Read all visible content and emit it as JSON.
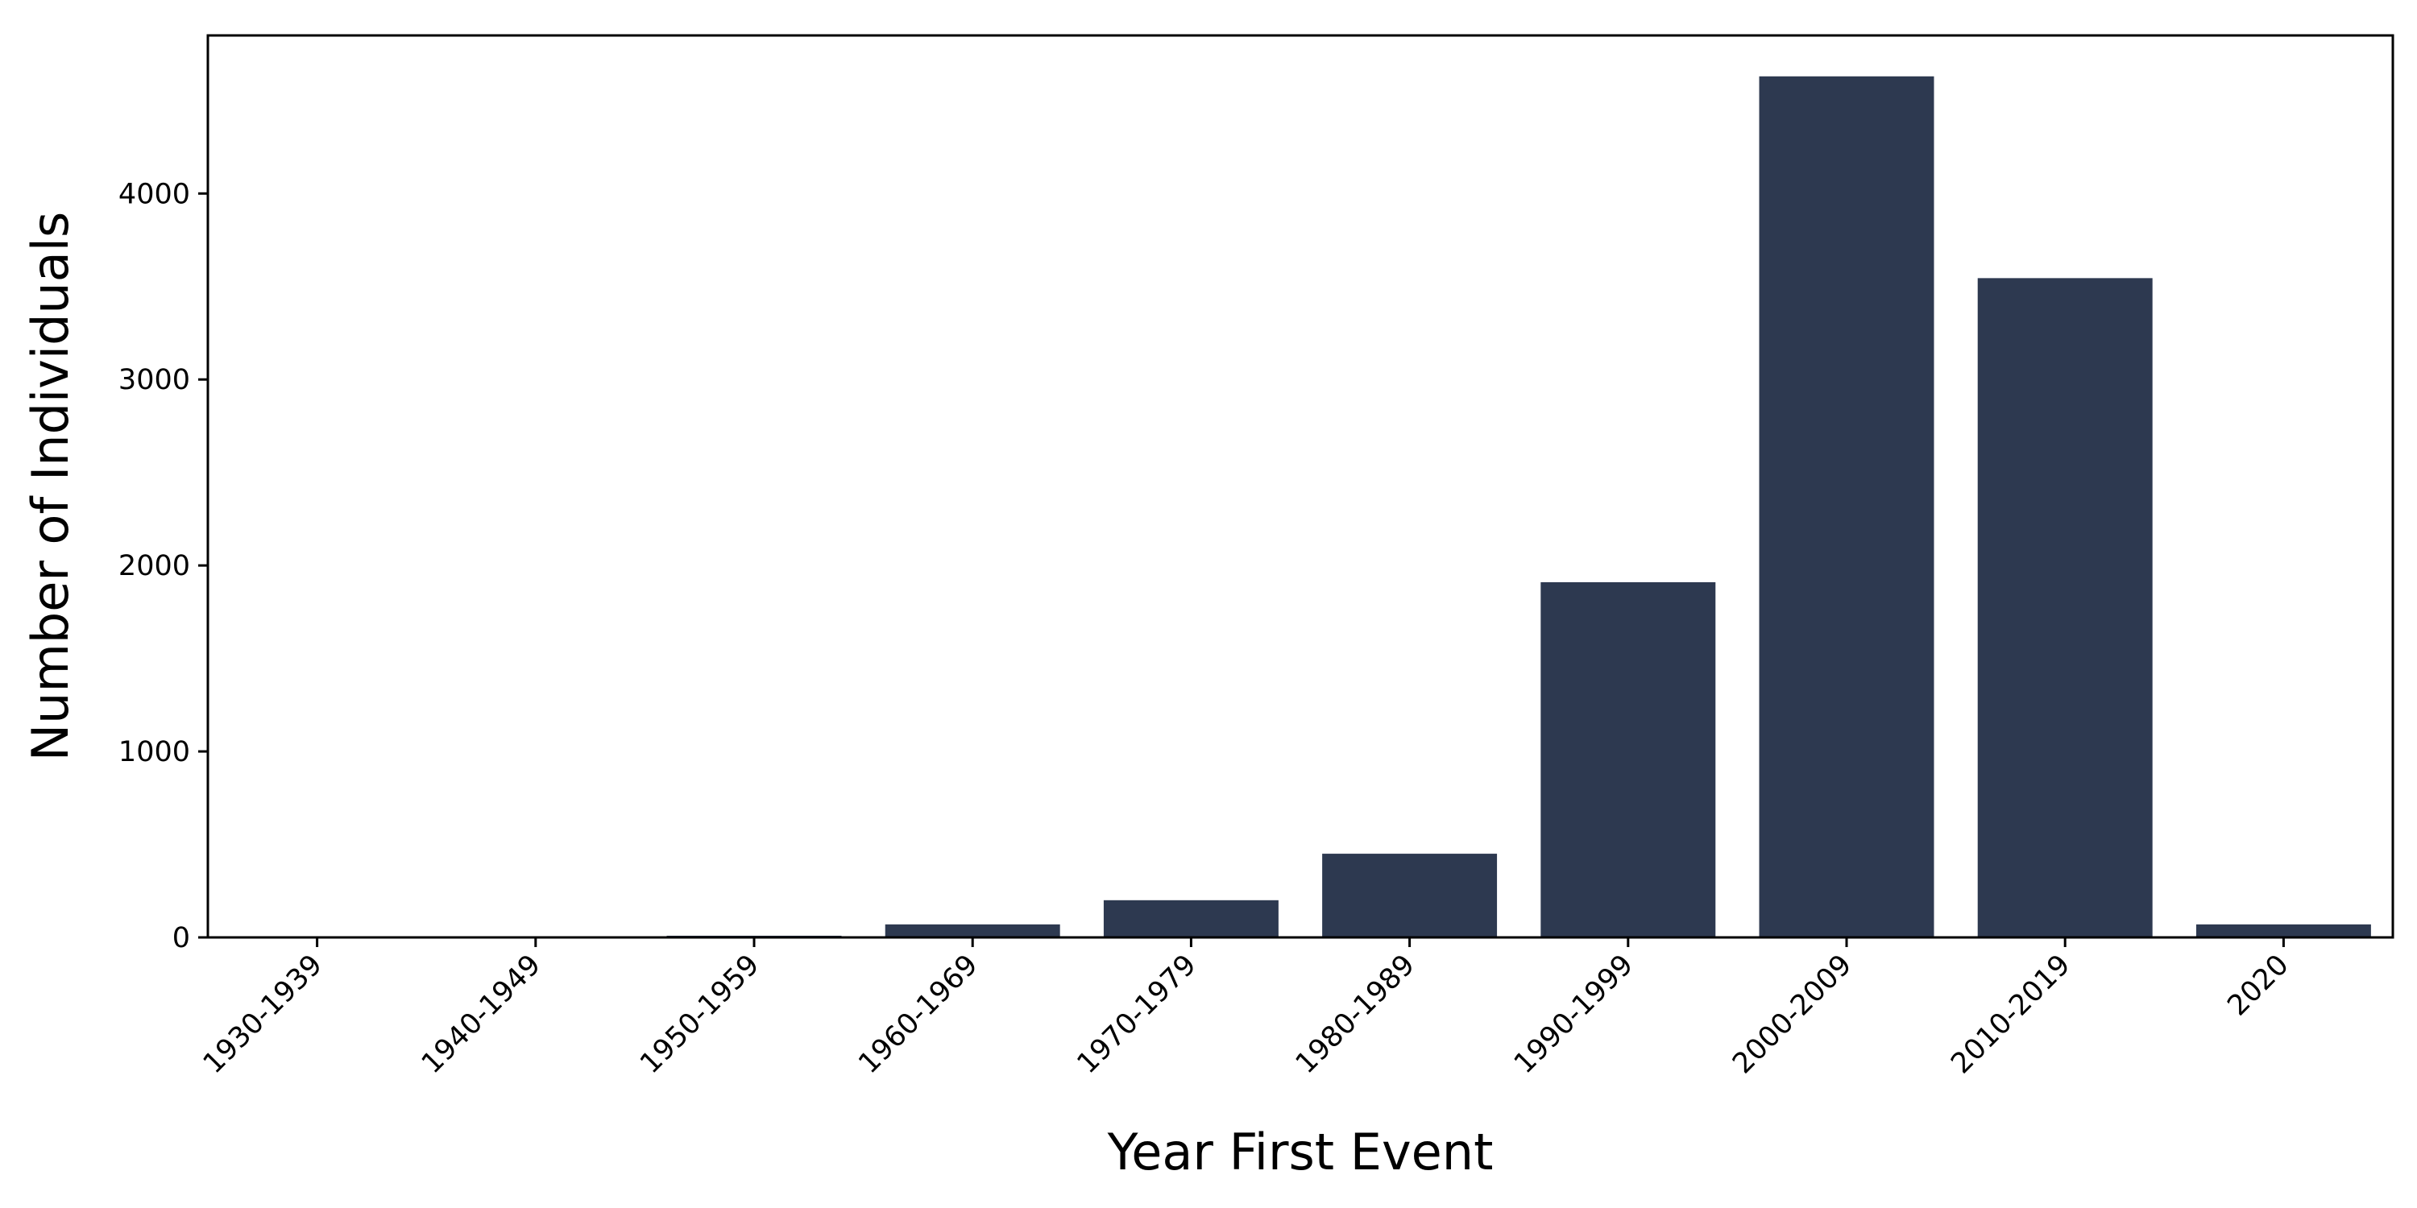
{
  "chart_data": {
    "type": "bar",
    "title": "",
    "xlabel": "Year First Event",
    "ylabel": "Number of Individuals",
    "categories": [
      "1930-1939",
      "1940-1949",
      "1950-1959",
      "1960-1969",
      "1970-1979",
      "1980-1989",
      "1990-1999",
      "2000-2009",
      "2010-2019",
      "2020"
    ],
    "values": [
      1,
      2,
      9,
      70,
      200,
      450,
      1910,
      4630,
      3545,
      70
    ],
    "ylim": [
      0,
      4850
    ],
    "yticks": [
      0,
      1000,
      2000,
      3000,
      4000
    ],
    "ytick_labels": [
      "0",
      "1000",
      "2000",
      "3000",
      "4000"
    ],
    "bar_color": "#2d3950",
    "grid": false,
    "legend": "none"
  }
}
